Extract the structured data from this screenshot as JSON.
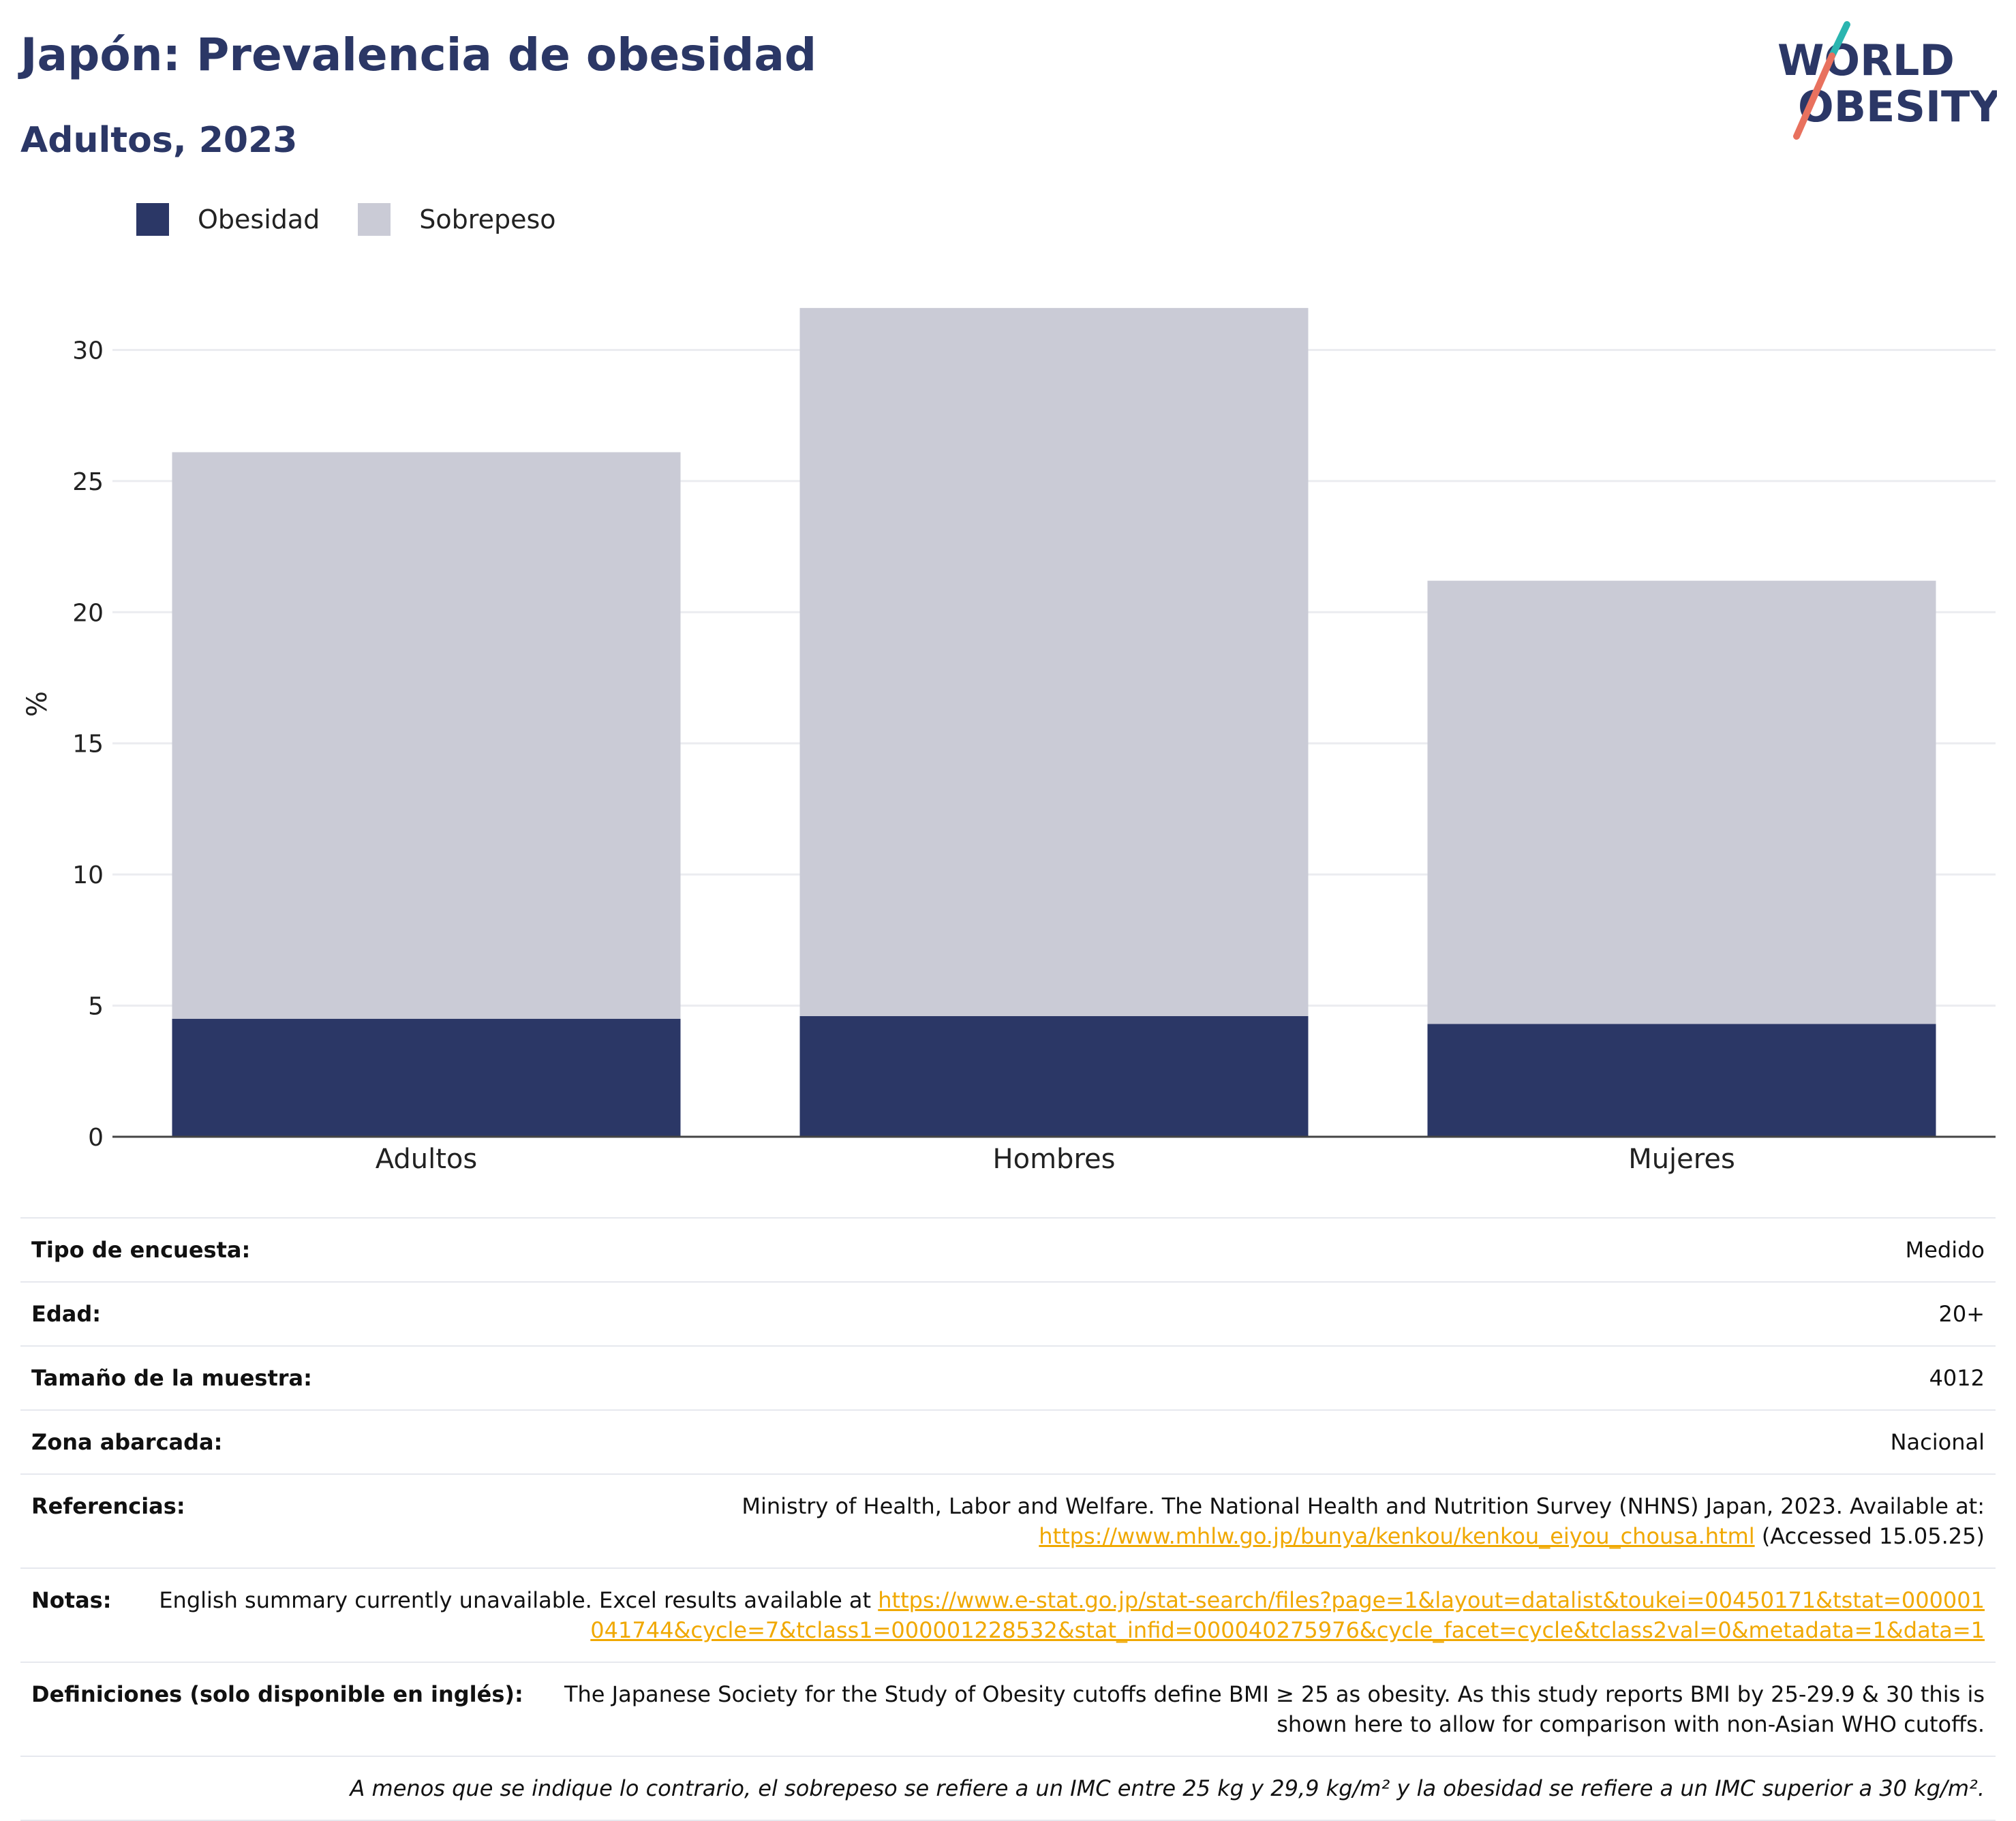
{
  "header": {
    "title": "Japón: Prevalencia de obesidad",
    "subtitle": "Adultos, 2023",
    "logo_line1": "WORLD",
    "logo_line2": "OBESITY"
  },
  "colors": {
    "obesity": "#2b3766",
    "overweight": "#cacbd6",
    "title": "#2b3766",
    "link": "#f0a800",
    "logo_teal": "#2bb5b0",
    "logo_coral": "#e8715e"
  },
  "chart_data": {
    "type": "bar",
    "stacked": true,
    "categories": [
      "Adultos",
      "Hombres",
      "Mujeres"
    ],
    "series": [
      {
        "name": "Obesidad",
        "values": [
          4.5,
          4.6,
          4.3
        ]
      },
      {
        "name": "Sobrepeso",
        "values": [
          21.6,
          27.0,
          16.9
        ]
      }
    ],
    "ylabel": "%",
    "xlabel": "",
    "ylim": [
      0,
      33
    ],
    "yticks": [
      0,
      5,
      10,
      15,
      20,
      25,
      30
    ],
    "grid": true,
    "legend_position": "top-left"
  },
  "metadata": [
    {
      "label": "Tipo de encuesta:",
      "value": "Medido"
    },
    {
      "label": "Edad:",
      "value": "20+"
    },
    {
      "label": "Tamaño de la muestra:",
      "value": "4012"
    },
    {
      "label": "Zona abarcada:",
      "value": "Nacional"
    }
  ],
  "references": {
    "label": "Referencias:",
    "text": "Ministry of Health, Labor and Welfare. The National Health and Nutrition Survey (NHNS) Japan, 2023. Available at:",
    "link": "https://www.mhlw.go.jp/bunya/kenkou/kenkou_eiyou_chousa.html",
    "suffix": "(Accessed 15.05.25)"
  },
  "notes": {
    "label": "Notas:",
    "text": "English summary currently unavailable. Excel results available at",
    "link": "https://www.e-stat.go.jp/stat-search/files?page=1&layout=datalist&toukei=00450171&tstat=000001041744&cycle=7&tclass1=000001228532&stat_infid=000040275976&cycle_facet=cycle&tclass2val=0&metadata=1&data=1"
  },
  "definitions": {
    "label": "Definiciones (solo disponible en inglés):",
    "text": "The Japanese Society for the Study of Obesity cutoffs define BMI ≥ 25 as obesity. As this study reports BMI by 25-29.9 & 30 this is shown here to allow for comparison with non-Asian WHO cutoffs."
  },
  "footnote": "A menos que se indique lo contrario, el sobrepeso se refiere a un IMC entre 25 kg y 29,9 kg/m² y la obesidad se refiere a un IMC superior a 30 kg/m²."
}
